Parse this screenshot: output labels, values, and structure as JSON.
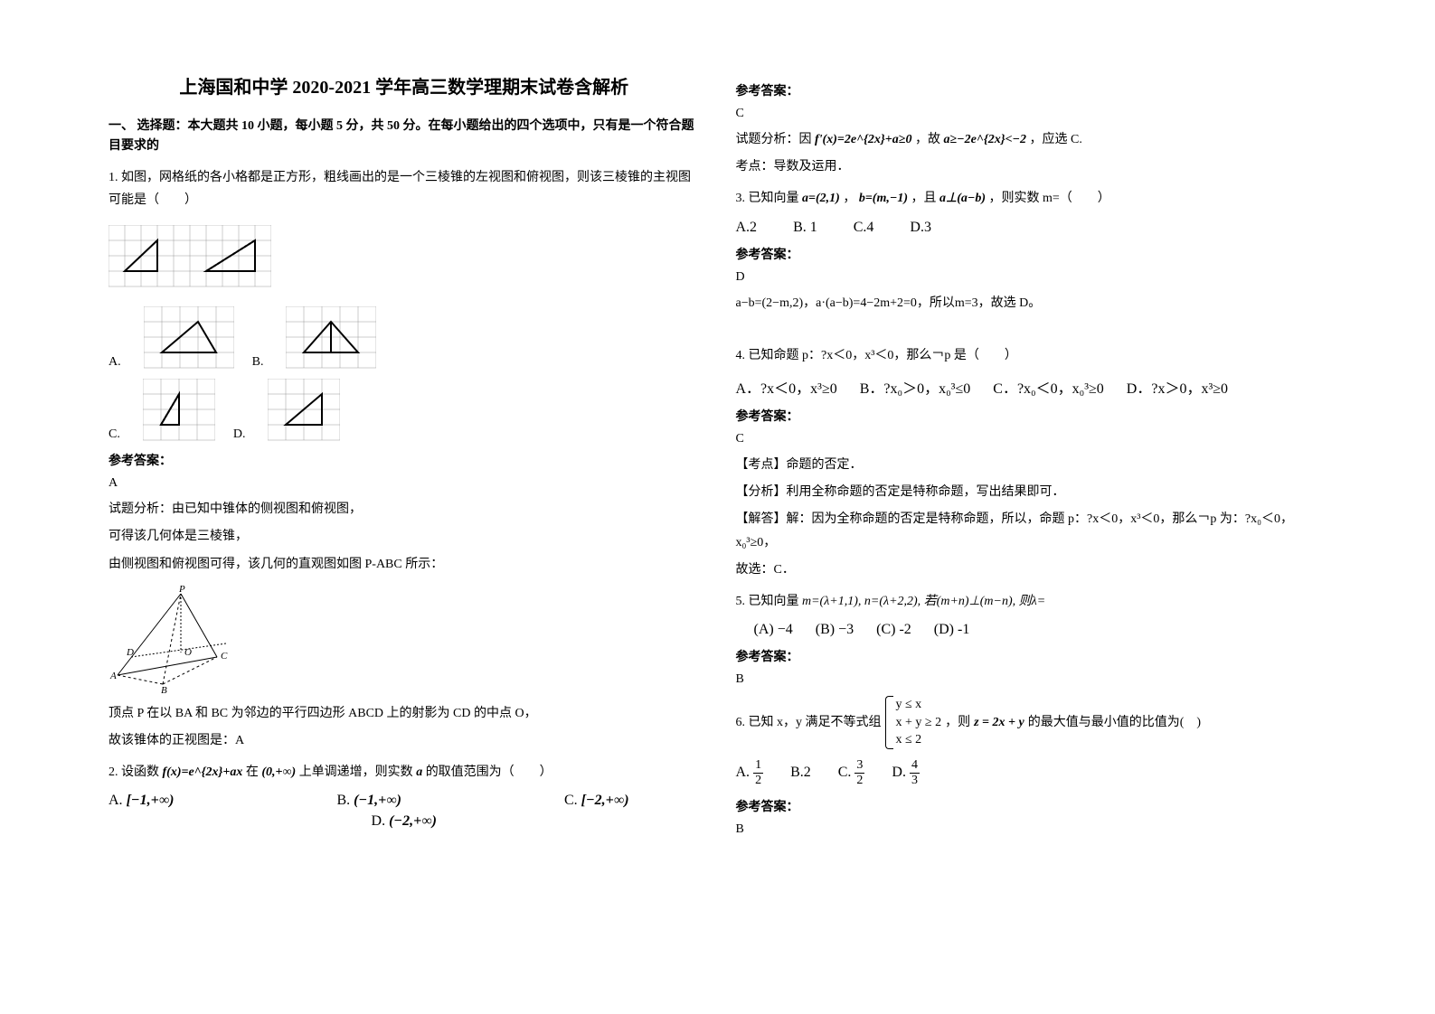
{
  "title": "上海国和中学 2020-2021 学年高三数学理期末试卷含解析",
  "section1_head": "一、 选择题：本大题共 10 小题，每小题 5 分，共 50 分。在每小题给出的四个选项中，只有是一个符合题目要求的",
  "q1": {
    "text": "1. 如图，网格纸的各小格都是正方形，粗线画出的是一个三棱锥的左视图和俯视图，则该三棱锥的主视图可能是（　　）",
    "labelA": "A.",
    "labelB": "B.",
    "labelC": "C.",
    "labelD": "D.",
    "ans_label": "参考答案：",
    "ans": "A",
    "analysis1": "试题分析：由已知中锥体的侧视图和俯视图，",
    "analysis2": "可得该几何体是三棱锥，",
    "analysis3": "由侧视图和俯视图可得，该几何的直观图如图 P-ABC 所示：",
    "analysis4": "顶点 P 在以 BA 和 BC 为邻边的平行四边形 ABCD 上的射影为 CD 的中点 O，",
    "analysis5": "故该锥体的正视图是：A"
  },
  "q2": {
    "text_a": "2. 设函数",
    "formula1": "f(x)=e^{2x}+ax",
    "text_b": "在",
    "formula2": "(0,+∞)",
    "text_c": "上单调递增，则实数",
    "formula3": "a",
    "text_d": "的取值范围为（　　）",
    "optA_label": "A.",
    "optA": "[−1,+∞)",
    "optB_label": "B.",
    "optB": "(−1,+∞)",
    "optC_label": "C.",
    "optC": "[−2,+∞)",
    "optD_label": "D.",
    "optD": "(−2,+∞)",
    "ans_label": "参考答案：",
    "ans": "C",
    "analysis_a": "试题分析：因",
    "analysis_f1": "f'(x)=2e^{2x}+a≥0",
    "analysis_b": "，故",
    "analysis_f2": "a≥−2e^{2x}<−2",
    "analysis_c": "，应选 C.",
    "analysis_d": "考点：导数及运用．"
  },
  "q3": {
    "text_a": "3. 已知向量",
    "f1": "a=(2,1)",
    "text_b": "，",
    "f2": "b=(m,−1)",
    "text_c": "，且",
    "f3": "a⊥(a−b)",
    "text_d": "，则实数 m=（　　）",
    "optA": "A.2",
    "optB": "B. 1",
    "optC": "C.4",
    "optD": "D.3",
    "ans_label": "参考答案：",
    "ans": "D",
    "analysis": "a−b=(2−m,2)，a·(a−b)=4−2m+2=0，所以m=3，故选 D。"
  },
  "q4": {
    "text": "4. 已知命题 p：?x＜0，x³＜0，那么￢p 是（　　）",
    "optA": "A．?x＜0，x³≥0",
    "optB": "B．?x₀＞0，x₀³≤0",
    "optC": "C．?x₀＜0，x₀³≥0",
    "optD": "D．?x＞0，x³≥0",
    "ans_label": "参考答案：",
    "ans": "C",
    "a1": "【考点】命题的否定．",
    "a2": "【分析】利用全称命题的否定是特称命题，写出结果即可．",
    "a3": "【解答】解：因为全称命题的否定是特称命题，所以，命题 p：?x＜0，x³＜0，那么￢p 为：?x₀＜0，x₀³≥0，",
    "a4": "故选：C．"
  },
  "q5": {
    "text_a": "5. 已知向量",
    "f1": "m=(λ+1,1), n=(λ+2,2), 若(m+n)⊥(m−n), 则λ=",
    "optA_label": "(A)",
    "optA": "−4",
    "optB_label": "(B)",
    "optB": "−3",
    "optC_label": "(C)",
    "optC": "-2",
    "optD_label": "(D)",
    "optD": "-1",
    "ans_label": "参考答案：",
    "ans": "B"
  },
  "q6": {
    "text_a": "6. 已知 x，y 满足不等式组",
    "sys1": "y ≤ x",
    "sys2": "x + y ≥ 2",
    "sys3": "x ≤ 2",
    "text_b": "，则",
    "f1": "z = 2x + y",
    "text_c": "的最大值与最小值的比值为(　)",
    "optA_label": "A.",
    "optB_label": "B.2",
    "optC_label": "C.",
    "optD_label": "D.",
    "fracA_num": "1",
    "fracA_den": "2",
    "fracC_num": "3",
    "fracC_den": "2",
    "fracD_num": "4",
    "fracD_den": "3",
    "ans_label": "参考答案：",
    "ans": "B"
  }
}
